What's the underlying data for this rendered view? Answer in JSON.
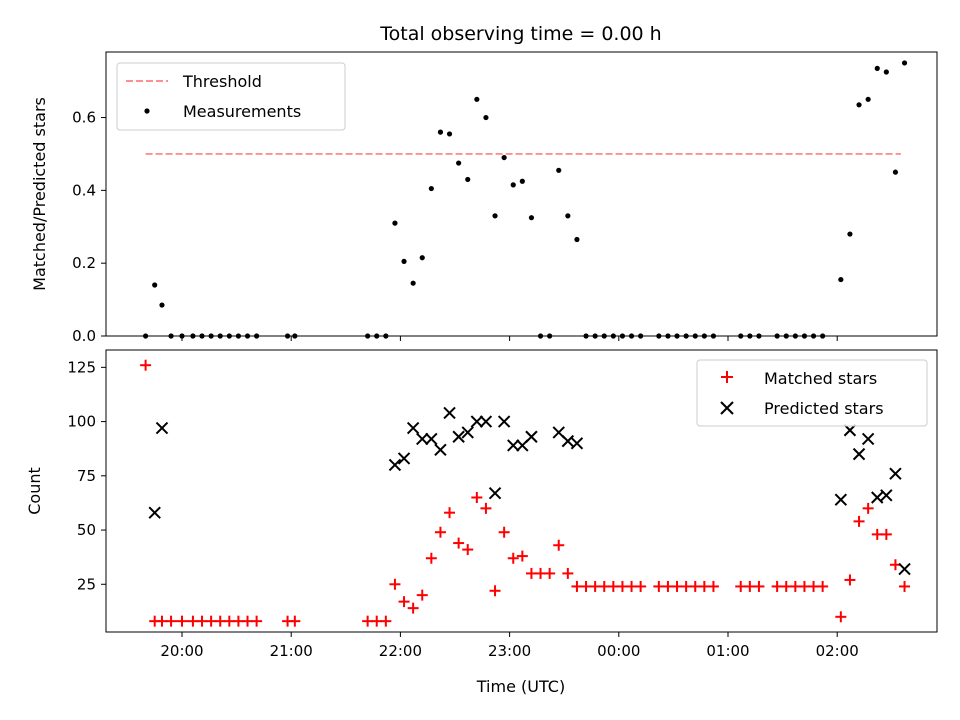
{
  "figure": {
    "title": "Total observing time = 0.00 h",
    "xlabel": "Time (UTC)",
    "xticks": [
      "20:00",
      "21:00",
      "22:00",
      "23:00",
      "00:00",
      "01:00",
      "02:00"
    ]
  },
  "colors": {
    "threshold": "#ff7f7f",
    "measurement": "#000000",
    "matched": "#ff0000",
    "predicted": "#000000"
  },
  "chart_data": [
    {
      "type": "scatter",
      "ylabel": "Matched/Predicted stars",
      "ylim": [
        0,
        0.78
      ],
      "yticks": [
        "0.0",
        "0.2",
        "0.4",
        "0.6"
      ],
      "x_unit": "minutes from 20:00 UTC",
      "legend": {
        "position": "top-left"
      },
      "threshold": {
        "name": "Threshold",
        "value": 0.5,
        "x_range": [
          -20,
          395
        ]
      },
      "series": [
        {
          "name": "Measurements",
          "points": [
            [
              -20,
              0
            ],
            [
              -15,
              0.14
            ],
            [
              -11,
              0.085
            ],
            [
              -6,
              0
            ],
            [
              0,
              0
            ],
            [
              6,
              0
            ],
            [
              11,
              0
            ],
            [
              16,
              0
            ],
            [
              21,
              0
            ],
            [
              26,
              0
            ],
            [
              31,
              0
            ],
            [
              36,
              0
            ],
            [
              41,
              0
            ],
            [
              58,
              0
            ],
            [
              62,
              0
            ],
            [
              102,
              0
            ],
            [
              107,
              0
            ],
            [
              112,
              0
            ],
            [
              117,
              0.31
            ],
            [
              122,
              0.205
            ],
            [
              127,
              0.145
            ],
            [
              132,
              0.215
            ],
            [
              137,
              0.405
            ],
            [
              142,
              0.56
            ],
            [
              147,
              0.555
            ],
            [
              152,
              0.475
            ],
            [
              157,
              0.43
            ],
            [
              162,
              0.65
            ],
            [
              167,
              0.6
            ],
            [
              172,
              0.33
            ],
            [
              177,
              0.49
            ],
            [
              182,
              0.415
            ],
            [
              187,
              0.425
            ],
            [
              192,
              0.325
            ],
            [
              197,
              0
            ],
            [
              202,
              0
            ],
            [
              207,
              0.455
            ],
            [
              212,
              0.33
            ],
            [
              217,
              0.265
            ],
            [
              222,
              0
            ],
            [
              227,
              0
            ],
            [
              232,
              0
            ],
            [
              237,
              0
            ],
            [
              242,
              0
            ],
            [
              247,
              0
            ],
            [
              252,
              0
            ],
            [
              262,
              0
            ],
            [
              267,
              0
            ],
            [
              272,
              0
            ],
            [
              277,
              0
            ],
            [
              282,
              0
            ],
            [
              287,
              0
            ],
            [
              292,
              0
            ],
            [
              307,
              0
            ],
            [
              312,
              0
            ],
            [
              317,
              0
            ],
            [
              327,
              0
            ],
            [
              332,
              0
            ],
            [
              337,
              0
            ],
            [
              342,
              0
            ],
            [
              347,
              0
            ],
            [
              352,
              0
            ],
            [
              362,
              0.155
            ],
            [
              367,
              0.28
            ],
            [
              372,
              0.635
            ],
            [
              377,
              0.65
            ],
            [
              382,
              0.735
            ],
            [
              387,
              0.725
            ],
            [
              392,
              0.45
            ],
            [
              397,
              0.75
            ]
          ]
        }
      ]
    },
    {
      "type": "scatter",
      "ylabel": "Count",
      "ylim": [
        3,
        133
      ],
      "yticks": [
        "25",
        "50",
        "75",
        "100",
        "125"
      ],
      "x_unit": "minutes from 20:00 UTC",
      "legend": {
        "position": "top-right"
      },
      "series": [
        {
          "name": "Matched stars",
          "marker": "plus",
          "points": [
            [
              -20,
              126
            ],
            [
              -15,
              8
            ],
            [
              -11,
              8
            ],
            [
              -6,
              8
            ],
            [
              0,
              8
            ],
            [
              6,
              8
            ],
            [
              11,
              8
            ],
            [
              16,
              8
            ],
            [
              21,
              8
            ],
            [
              26,
              8
            ],
            [
              31,
              8
            ],
            [
              36,
              8
            ],
            [
              41,
              8
            ],
            [
              58,
              8
            ],
            [
              62,
              8
            ],
            [
              102,
              8
            ],
            [
              107,
              8
            ],
            [
              112,
              8
            ],
            [
              117,
              25
            ],
            [
              122,
              17
            ],
            [
              127,
              14
            ],
            [
              132,
              20
            ],
            [
              137,
              37
            ],
            [
              142,
              49
            ],
            [
              147,
              58
            ],
            [
              152,
              44
            ],
            [
              157,
              41
            ],
            [
              162,
              65
            ],
            [
              167,
              60
            ],
            [
              172,
              22
            ],
            [
              177,
              49
            ],
            [
              182,
              37
            ],
            [
              187,
              38
            ],
            [
              192,
              30
            ],
            [
              197,
              30
            ],
            [
              202,
              30
            ],
            [
              207,
              43
            ],
            [
              212,
              30
            ],
            [
              217,
              24
            ],
            [
              222,
              24
            ],
            [
              227,
              24
            ],
            [
              232,
              24
            ],
            [
              237,
              24
            ],
            [
              242,
              24
            ],
            [
              247,
              24
            ],
            [
              252,
              24
            ],
            [
              262,
              24
            ],
            [
              267,
              24
            ],
            [
              272,
              24
            ],
            [
              277,
              24
            ],
            [
              282,
              24
            ],
            [
              287,
              24
            ],
            [
              292,
              24
            ],
            [
              307,
              24
            ],
            [
              312,
              24
            ],
            [
              317,
              24
            ],
            [
              327,
              24
            ],
            [
              332,
              24
            ],
            [
              337,
              24
            ],
            [
              342,
              24
            ],
            [
              347,
              24
            ],
            [
              352,
              24
            ],
            [
              362,
              10
            ],
            [
              367,
              27
            ],
            [
              372,
              54
            ],
            [
              377,
              60
            ],
            [
              382,
              48
            ],
            [
              387,
              48
            ],
            [
              392,
              34
            ],
            [
              397,
              24
            ]
          ]
        },
        {
          "name": "Predicted stars",
          "marker": "x",
          "points": [
            [
              -15,
              58
            ],
            [
              -11,
              97
            ],
            [
              117,
              80
            ],
            [
              122,
              83
            ],
            [
              127,
              97
            ],
            [
              132,
              92
            ],
            [
              137,
              92
            ],
            [
              142,
              87
            ],
            [
              147,
              104
            ],
            [
              152,
              93
            ],
            [
              157,
              95
            ],
            [
              162,
              100
            ],
            [
              167,
              100
            ],
            [
              172,
              67
            ],
            [
              177,
              100
            ],
            [
              182,
              89
            ],
            [
              187,
              89
            ],
            [
              192,
              93
            ],
            [
              207,
              95
            ],
            [
              212,
              91
            ],
            [
              217,
              90
            ],
            [
              362,
              64
            ],
            [
              367,
              96
            ],
            [
              372,
              85
            ],
            [
              377,
              92
            ],
            [
              382,
              65
            ],
            [
              387,
              66
            ],
            [
              392,
              76
            ],
            [
              397,
              32
            ]
          ]
        }
      ]
    }
  ]
}
